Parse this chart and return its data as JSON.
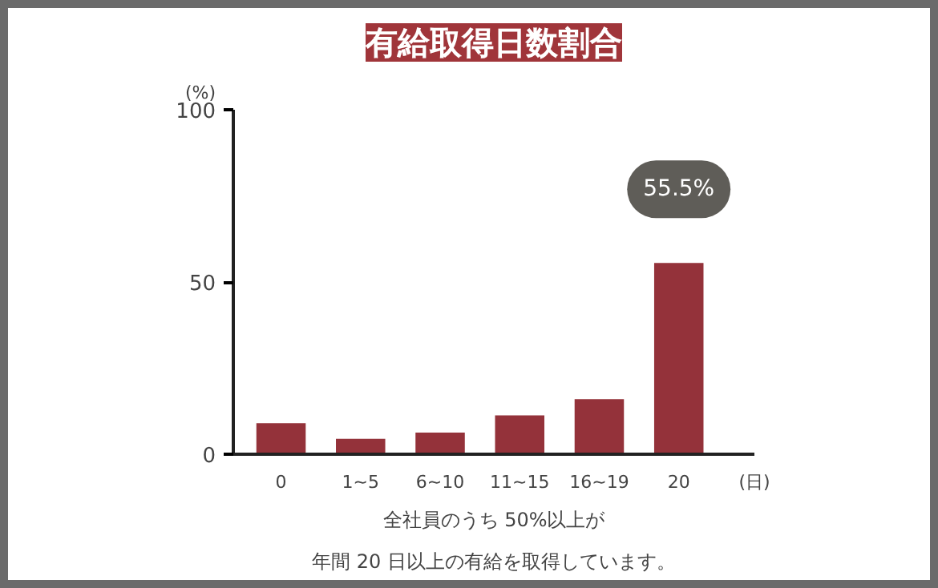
{
  "chart_data": {
    "type": "bar",
    "title": "有給取得日数割合",
    "categories": [
      "0",
      "1~5",
      "6~10",
      "11~15",
      "16~19",
      "20"
    ],
    "values": [
      9,
      4.5,
      6.3,
      11.3,
      16,
      55.5
    ],
    "value_labels": [
      null,
      null,
      null,
      null,
      null,
      "55.5%"
    ],
    "color": "#94323a",
    "ylim": [
      0,
      100
    ],
    "yticks": [
      0,
      50,
      100
    ],
    "grid": false,
    "xlabel": "(日)",
    "ylabel": "(%)",
    "annotations": [
      "全社員のうち 50%以上が",
      "年間 20 日以上の有給を取得しています。"
    ]
  }
}
